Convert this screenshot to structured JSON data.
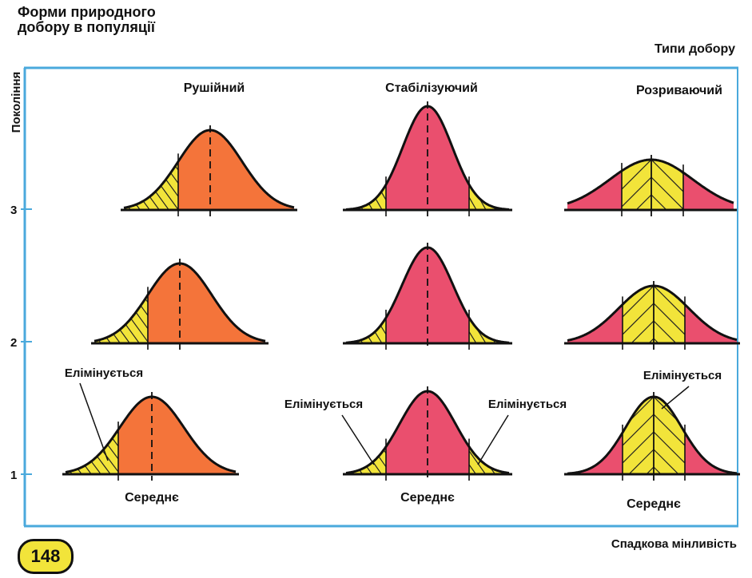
{
  "title": {
    "line1": "Форми природного",
    "line2": "добору в популяції"
  },
  "y_axis": {
    "label": "Покоління",
    "ticks": [
      "1",
      "2",
      "3"
    ]
  },
  "x_axis": {
    "label": "Спадкова мінливість"
  },
  "types_caption": "Типи добору",
  "columns": [
    {
      "label": "Рушійний",
      "mean_label": "Середнє"
    },
    {
      "label": "Стабілізуючий",
      "mean_label": "Середнє"
    },
    {
      "label": "Розриваючий",
      "mean_label": "Середнє"
    }
  ],
  "eliminated_label": "Елімінується",
  "page_number": "148",
  "colors": {
    "frame": "#4aa9dc",
    "orange": "#f4743a",
    "pink": "#ea4f6e",
    "yellow": "#f2e43a",
    "badge": "#f2e43a"
  }
}
